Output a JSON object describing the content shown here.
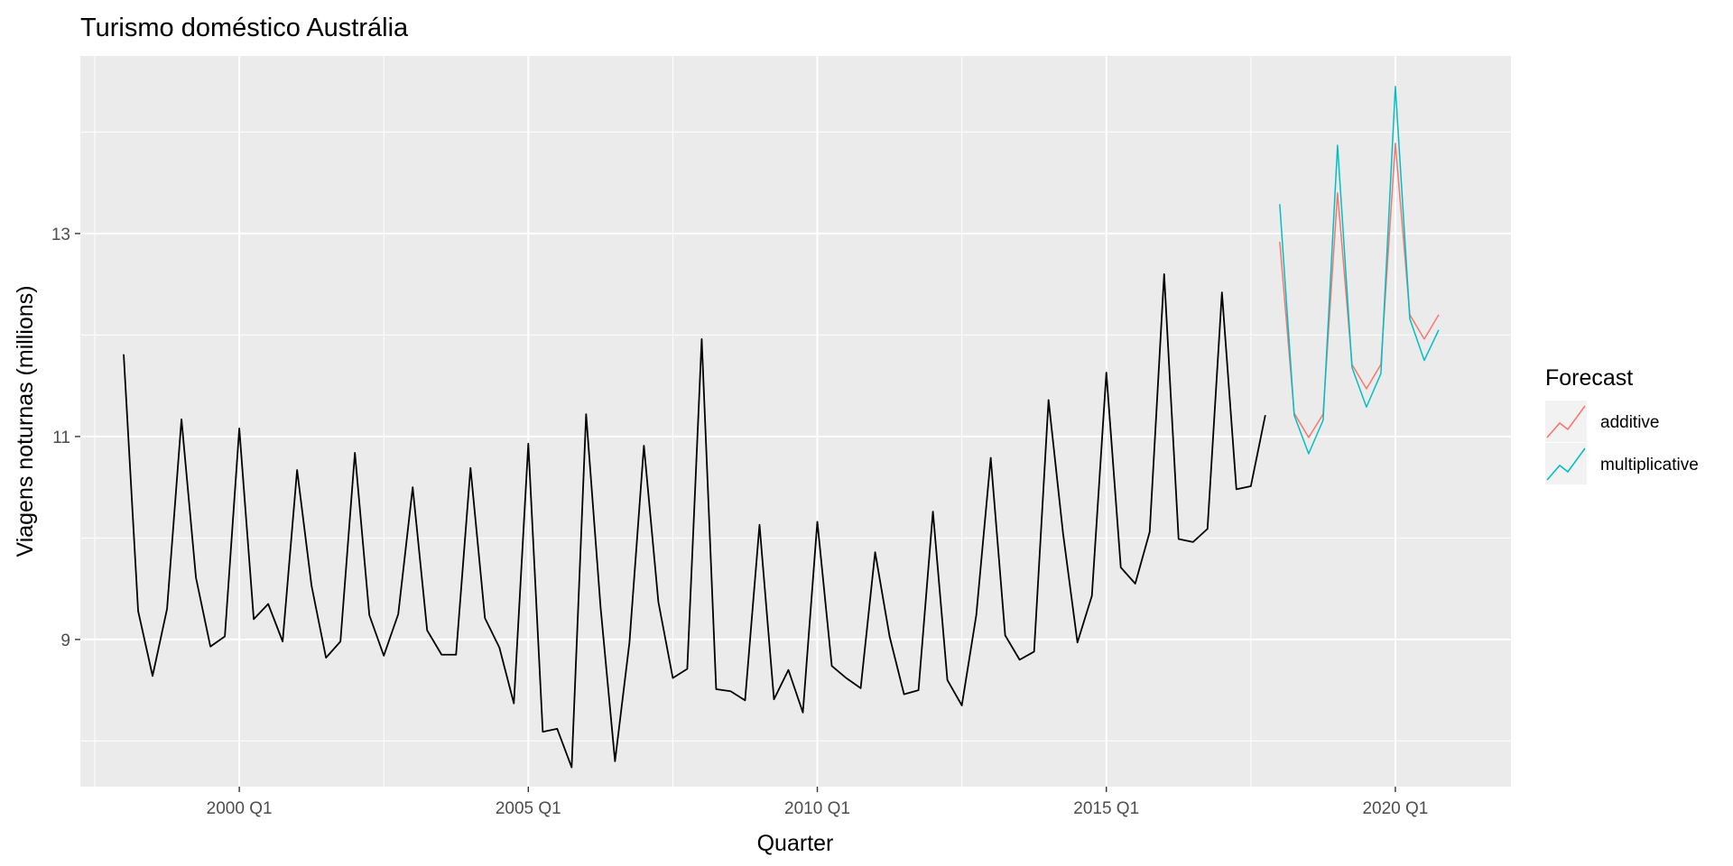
{
  "chart_data": {
    "type": "line",
    "title": "Turismo doméstico Austrália",
    "xlabel": "Quarter",
    "ylabel": "Viagens noturnas (millions)",
    "x_ticks": [
      "2000 Q1",
      "2005 Q1",
      "2010 Q1",
      "2015 Q1",
      "2020 Q1"
    ],
    "y_ticks": [
      "9",
      "11",
      "13"
    ],
    "xlim": [
      "1997 Q2",
      "2022 Q1"
    ],
    "ylim": [
      7.55,
      14.75
    ],
    "grid": true,
    "legend": {
      "title": "Forecast",
      "position": "right",
      "entries": [
        "additive",
        "multiplicative"
      ]
    },
    "series": [
      {
        "color": "#000000",
        "x": [
          "1998 Q1",
          "1998 Q2",
          "1998 Q3",
          "1998 Q4",
          "1999 Q1",
          "1999 Q2",
          "1999 Q3",
          "1999 Q4",
          "2000 Q1",
          "2000 Q2",
          "2000 Q3",
          "2000 Q4",
          "2001 Q1",
          "2001 Q2",
          "2001 Q3",
          "2001 Q4",
          "2002 Q1",
          "2002 Q2",
          "2002 Q3",
          "2002 Q4",
          "2003 Q1",
          "2003 Q2",
          "2003 Q3",
          "2003 Q4",
          "2004 Q1",
          "2004 Q2",
          "2004 Q3",
          "2004 Q4",
          "2005 Q1",
          "2005 Q2",
          "2005 Q3",
          "2005 Q4",
          "2006 Q1",
          "2006 Q2",
          "2006 Q3",
          "2006 Q4",
          "2007 Q1",
          "2007 Q2",
          "2007 Q3",
          "2007 Q4",
          "2008 Q1",
          "2008 Q2",
          "2008 Q3",
          "2008 Q4",
          "2009 Q1",
          "2009 Q2",
          "2009 Q3",
          "2009 Q4",
          "2010 Q1",
          "2010 Q2",
          "2010 Q3",
          "2010 Q4",
          "2011 Q1",
          "2011 Q2",
          "2011 Q3",
          "2011 Q4",
          "2012 Q1",
          "2012 Q2",
          "2012 Q3",
          "2012 Q4",
          "2013 Q1",
          "2013 Q2",
          "2013 Q3",
          "2013 Q4",
          "2014 Q1",
          "2014 Q2",
          "2014 Q3",
          "2014 Q4",
          "2015 Q1",
          "2015 Q2",
          "2015 Q3",
          "2015 Q4",
          "2016 Q1",
          "2016 Q2",
          "2016 Q3",
          "2016 Q4",
          "2017 Q1",
          "2017 Q2",
          "2017 Q3",
          "2017 Q4"
        ],
        "values": [
          11.81,
          9.28,
          8.64,
          9.3,
          11.17,
          9.61,
          8.93,
          9.03,
          11.08,
          9.2,
          9.35,
          8.98,
          10.67,
          9.53,
          8.82,
          8.98,
          10.84,
          9.24,
          8.84,
          9.25,
          10.5,
          9.09,
          8.85,
          8.85,
          10.69,
          9.21,
          8.92,
          8.37,
          10.93,
          8.09,
          8.12,
          7.74,
          11.22,
          9.32,
          7.8,
          8.97,
          10.91,
          9.37,
          8.62,
          8.71,
          11.96,
          8.51,
          8.49,
          8.4,
          10.13,
          8.41,
          8.7,
          8.28,
          10.16,
          8.74,
          8.62,
          8.52,
          9.86,
          9.03,
          8.46,
          8.5,
          10.26,
          8.6,
          8.35,
          9.24,
          10.79,
          9.04,
          8.8,
          8.88,
          11.36,
          10.05,
          8.97,
          9.43,
          11.63,
          9.71,
          9.55,
          10.06,
          12.6,
          9.99,
          9.96,
          10.09,
          12.42,
          10.48,
          10.51,
          11.21
        ]
      },
      {
        "name": "additive",
        "color": "#f8766d",
        "x": [
          "2018 Q1",
          "2018 Q2",
          "2018 Q3",
          "2018 Q4",
          "2019 Q1",
          "2019 Q2",
          "2019 Q3",
          "2019 Q4",
          "2020 Q1",
          "2020 Q2",
          "2020 Q3",
          "2020 Q4"
        ],
        "values": [
          12.92,
          11.23,
          10.99,
          11.22,
          13.4,
          11.71,
          11.47,
          11.71,
          13.89,
          12.2,
          11.96,
          12.2
        ]
      },
      {
        "name": "multiplicative",
        "color": "#00bfc4",
        "x": [
          "2018 Q1",
          "2018 Q2",
          "2018 Q3",
          "2018 Q4",
          "2019 Q1",
          "2019 Q2",
          "2019 Q3",
          "2019 Q4",
          "2020 Q1",
          "2020 Q2",
          "2020 Q3",
          "2020 Q4"
        ],
        "values": [
          13.29,
          11.21,
          10.83,
          11.16,
          13.87,
          11.68,
          11.29,
          11.62,
          14.45,
          12.16,
          11.75,
          12.05
        ]
      }
    ]
  }
}
